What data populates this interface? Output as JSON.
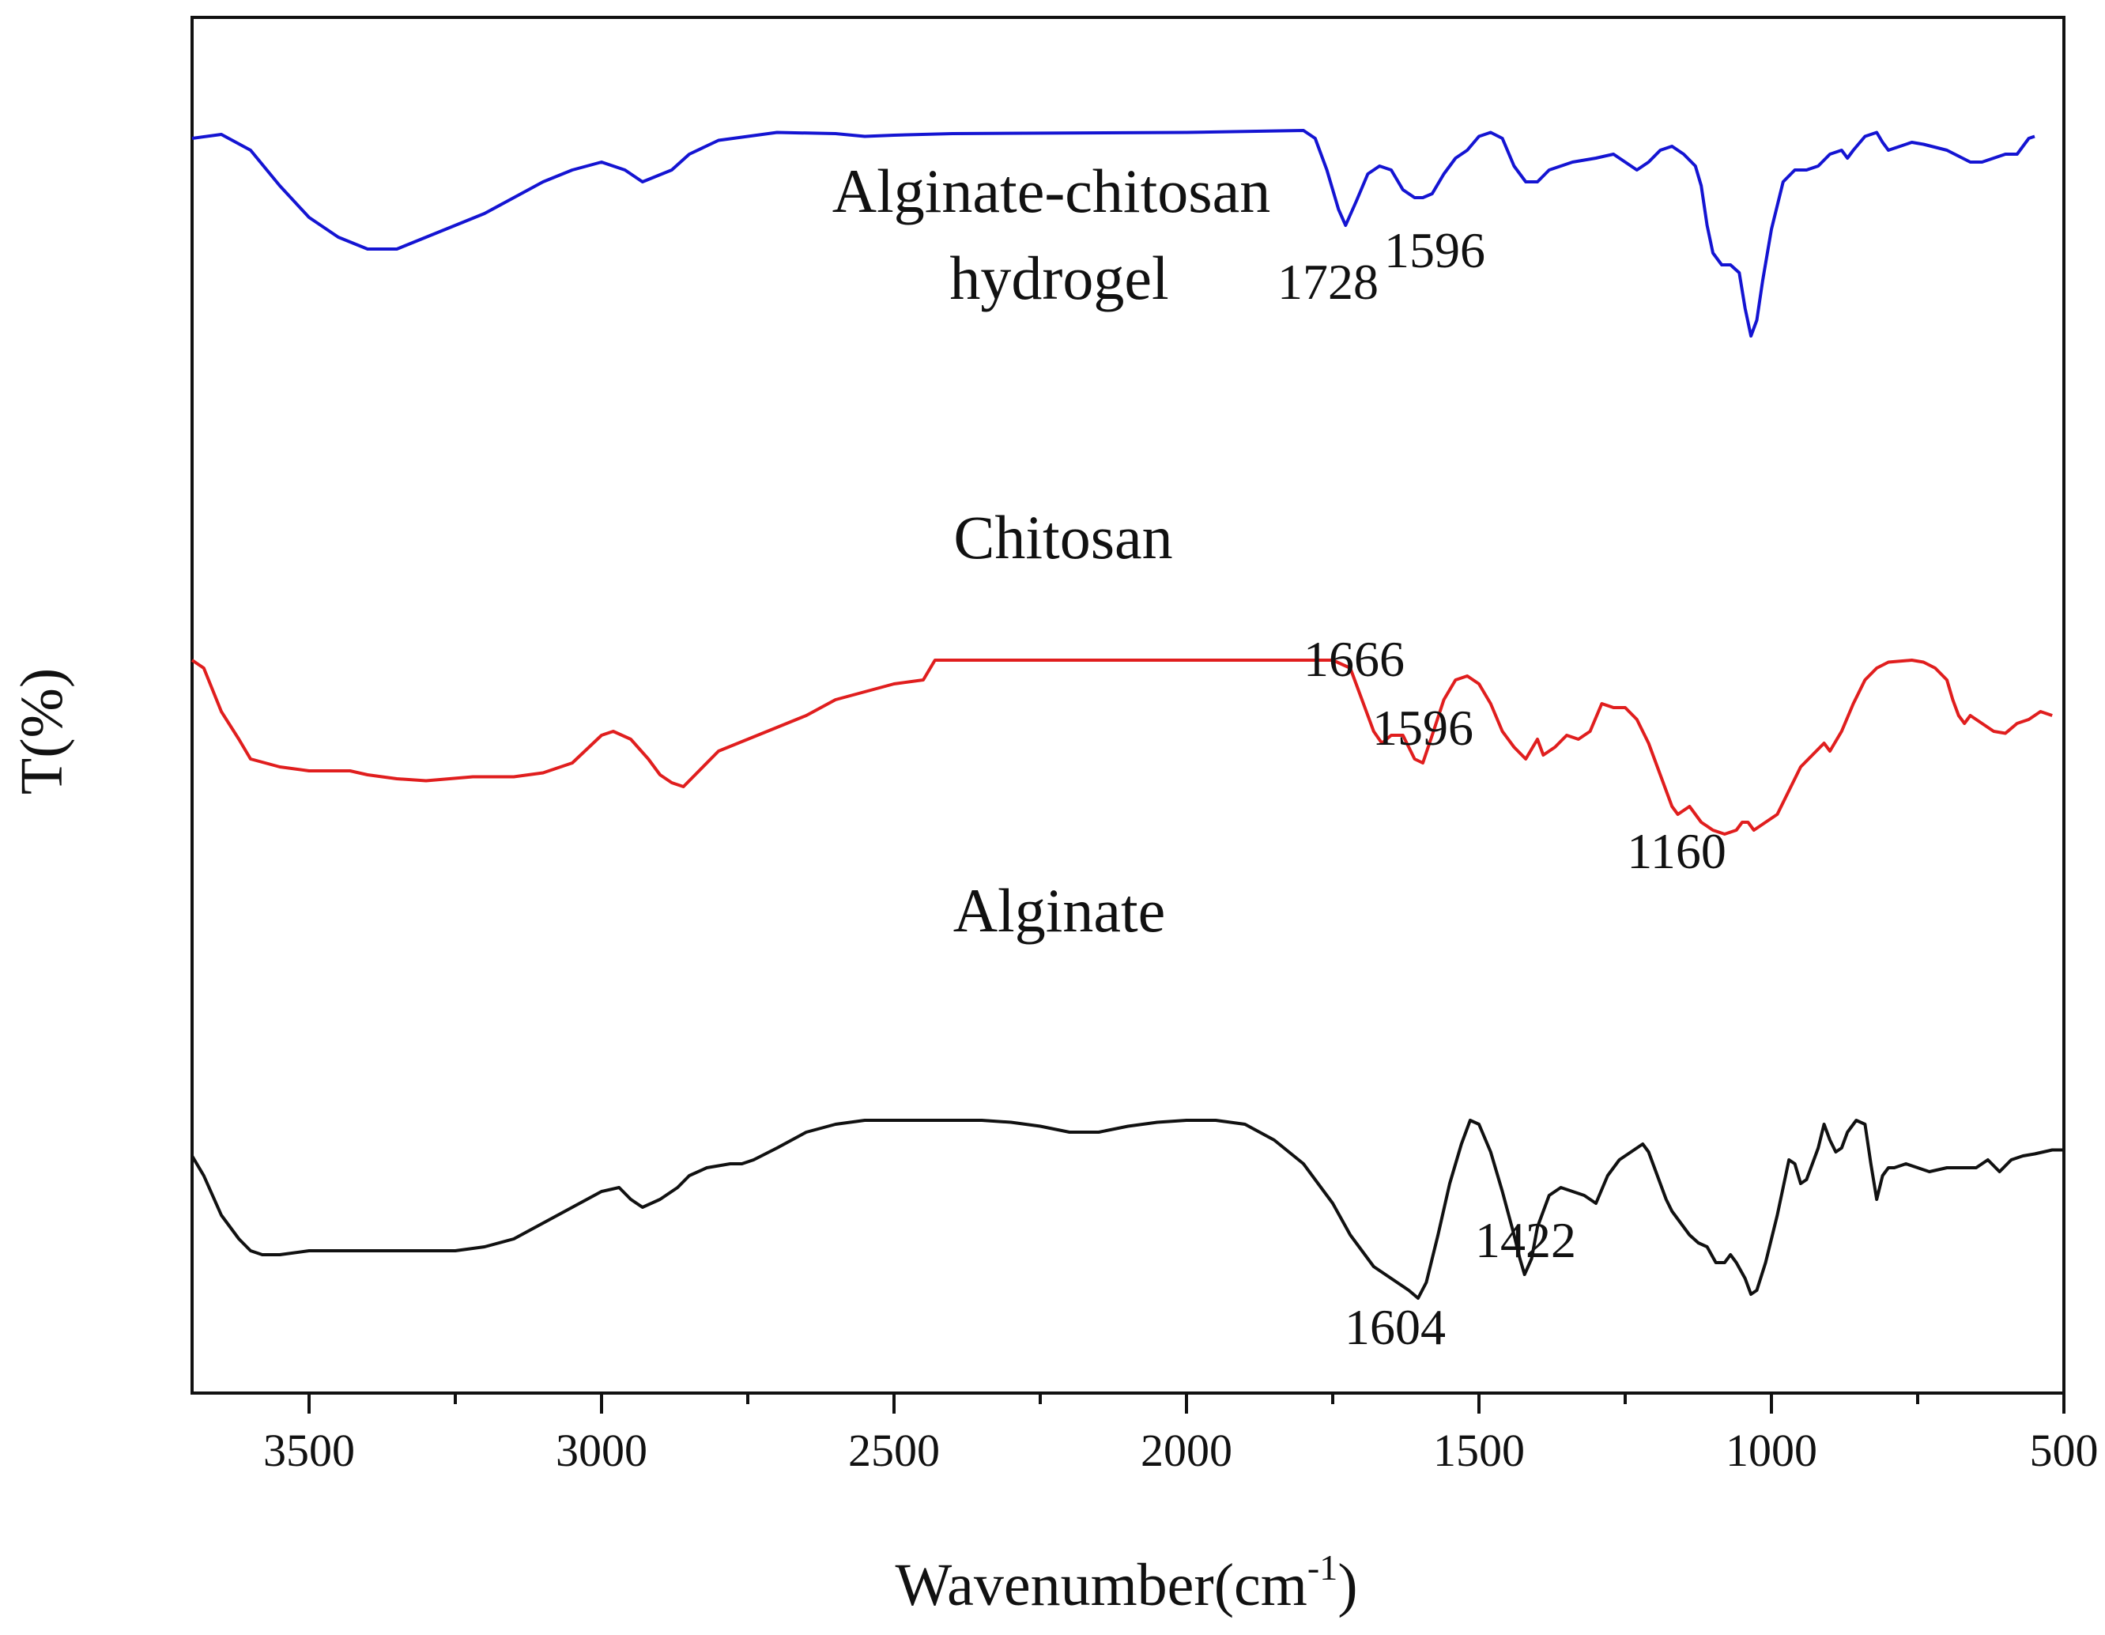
{
  "chart_data": {
    "type": "line",
    "title": "",
    "xlabel": "Wavenumber(cm",
    "xlabel_sup": "-1",
    "xlabel_close": ")",
    "ylabel": "T(%)",
    "xlim": [
      3700,
      500
    ],
    "x_reversed": true,
    "xticks": [
      "3500",
      "3000",
      "2500",
      "2000",
      "1500",
      "1000",
      "500"
    ],
    "xtick_values": [
      3500,
      3000,
      2500,
      2000,
      1500,
      1000,
      500
    ],
    "y_ticks_shown": false,
    "grid": false,
    "legend": "none",
    "series": [
      {
        "name": "Alginate-chitosan hydrogel",
        "label_lines": [
          "Alginate-chitosan",
          "hydrogel"
        ],
        "color": "#1414d2",
        "points": [
          [
            3700,
            2.0
          ],
          [
            3650,
            1.0
          ],
          [
            3600,
            5
          ],
          [
            3550,
            14
          ],
          [
            3500,
            22
          ],
          [
            3450,
            27
          ],
          [
            3400,
            30
          ],
          [
            3350,
            30
          ],
          [
            3300,
            27
          ],
          [
            3250,
            24
          ],
          [
            3200,
            21
          ],
          [
            3150,
            17
          ],
          [
            3100,
            13
          ],
          [
            3050,
            10
          ],
          [
            3000,
            8
          ],
          [
            2960,
            10
          ],
          [
            2930,
            13
          ],
          [
            2880,
            10
          ],
          [
            2850,
            6
          ],
          [
            2800,
            2.5
          ],
          [
            2700,
            0.5
          ],
          [
            2600,
            0.8
          ],
          [
            2550,
            1.5
          ],
          [
            2500,
            1.2
          ],
          [
            2400,
            0.8
          ],
          [
            2000,
            0.5
          ],
          [
            1800,
            0.0
          ],
          [
            1780,
            2
          ],
          [
            1760,
            10
          ],
          [
            1740,
            20
          ],
          [
            1728,
            24
          ],
          [
            1710,
            18
          ],
          [
            1690,
            11
          ],
          [
            1670,
            9
          ],
          [
            1650,
            10
          ],
          [
            1630,
            15
          ],
          [
            1610,
            17
          ],
          [
            1596,
            17
          ],
          [
            1580,
            16
          ],
          [
            1560,
            11
          ],
          [
            1540,
            7
          ],
          [
            1520,
            5
          ],
          [
            1500,
            1.5
          ],
          [
            1480,
            0.5
          ],
          [
            1460,
            2
          ],
          [
            1440,
            9
          ],
          [
            1420,
            13
          ],
          [
            1400,
            13
          ],
          [
            1380,
            10
          ],
          [
            1340,
            8
          ],
          [
            1300,
            7
          ],
          [
            1270,
            6
          ],
          [
            1250,
            8
          ],
          [
            1230,
            10
          ],
          [
            1210,
            8
          ],
          [
            1190,
            5
          ],
          [
            1170,
            4
          ],
          [
            1150,
            6
          ],
          [
            1130,
            9
          ],
          [
            1120,
            14
          ],
          [
            1110,
            24
          ],
          [
            1100,
            31
          ],
          [
            1085,
            34
          ],
          [
            1070,
            34
          ],
          [
            1055,
            36
          ],
          [
            1045,
            45
          ],
          [
            1035,
            52
          ],
          [
            1025,
            48
          ],
          [
            1015,
            38
          ],
          [
            1000,
            25
          ],
          [
            980,
            13
          ],
          [
            960,
            10
          ],
          [
            940,
            10
          ],
          [
            920,
            9
          ],
          [
            900,
            6
          ],
          [
            880,
            5
          ],
          [
            870,
            7
          ],
          [
            860,
            5
          ],
          [
            840,
            1.5
          ],
          [
            820,
            0.5
          ],
          [
            810,
            3
          ],
          [
            800,
            5
          ],
          [
            780,
            4
          ],
          [
            760,
            3
          ],
          [
            740,
            3.5
          ],
          [
            700,
            5
          ],
          [
            660,
            8
          ],
          [
            640,
            8
          ],
          [
            620,
            7
          ],
          [
            600,
            6
          ],
          [
            580,
            6
          ],
          [
            570,
            4
          ],
          [
            560,
            2
          ],
          [
            550,
            1.5
          ]
        ]
      },
      {
        "name": "Chitosan",
        "label_lines": [
          "Chitosan"
        ],
        "color": "#e01e1e",
        "points": [
          [
            3700,
            47
          ],
          [
            3680,
            49
          ],
          [
            3650,
            60
          ],
          [
            3620,
            67
          ],
          [
            3600,
            72
          ],
          [
            3550,
            74
          ],
          [
            3500,
            75
          ],
          [
            3430,
            75
          ],
          [
            3400,
            76
          ],
          [
            3350,
            77
          ],
          [
            3300,
            77.5
          ],
          [
            3260,
            77
          ],
          [
            3220,
            76.5
          ],
          [
            3150,
            76.5
          ],
          [
            3100,
            75.5
          ],
          [
            3050,
            73
          ],
          [
            3000,
            66
          ],
          [
            2980,
            65
          ],
          [
            2950,
            67
          ],
          [
            2920,
            72
          ],
          [
            2900,
            76
          ],
          [
            2880,
            78
          ],
          [
            2860,
            79
          ],
          [
            2840,
            76
          ],
          [
            2800,
            70
          ],
          [
            2750,
            67
          ],
          [
            2700,
            64
          ],
          [
            2650,
            61
          ],
          [
            2600,
            57
          ],
          [
            2550,
            55
          ],
          [
            2500,
            53
          ],
          [
            2450,
            52
          ],
          [
            2430,
            47
          ],
          [
            2200,
            47
          ],
          [
            2100,
            47
          ],
          [
            1750,
            47
          ],
          [
            1720,
            49
          ],
          [
            1700,
            57
          ],
          [
            1680,
            65
          ],
          [
            1666,
            68
          ],
          [
            1650,
            66
          ],
          [
            1630,
            66
          ],
          [
            1610,
            72
          ],
          [
            1596,
            73
          ],
          [
            1580,
            66
          ],
          [
            1560,
            57
          ],
          [
            1540,
            52
          ],
          [
            1520,
            51
          ],
          [
            1500,
            53
          ],
          [
            1480,
            58
          ],
          [
            1460,
            65
          ],
          [
            1440,
            69
          ],
          [
            1420,
            72
          ],
          [
            1400,
            67
          ],
          [
            1390,
            71
          ],
          [
            1370,
            69
          ],
          [
            1350,
            66
          ],
          [
            1330,
            67
          ],
          [
            1310,
            65
          ],
          [
            1290,
            58
          ],
          [
            1270,
            59
          ],
          [
            1250,
            59
          ],
          [
            1230,
            62
          ],
          [
            1210,
            68
          ],
          [
            1190,
            76
          ],
          [
            1170,
            84
          ],
          [
            1160,
            86
          ],
          [
            1140,
            84
          ],
          [
            1120,
            88
          ],
          [
            1100,
            90
          ],
          [
            1080,
            91
          ],
          [
            1060,
            90
          ],
          [
            1050,
            88
          ],
          [
            1040,
            88
          ],
          [
            1030,
            90
          ],
          [
            1010,
            88
          ],
          [
            990,
            86
          ],
          [
            970,
            80
          ],
          [
            950,
            74
          ],
          [
            930,
            71
          ],
          [
            910,
            68
          ],
          [
            900,
            70
          ],
          [
            880,
            65
          ],
          [
            860,
            58
          ],
          [
            840,
            52
          ],
          [
            820,
            49
          ],
          [
            800,
            47.5
          ],
          [
            760,
            47
          ],
          [
            740,
            47.5
          ],
          [
            720,
            49
          ],
          [
            700,
            52
          ],
          [
            690,
            57
          ],
          [
            680,
            61
          ],
          [
            670,
            63
          ],
          [
            660,
            61
          ],
          [
            640,
            63
          ],
          [
            620,
            65
          ],
          [
            600,
            65.5
          ],
          [
            580,
            63
          ],
          [
            560,
            62
          ],
          [
            540,
            60
          ],
          [
            520,
            61
          ]
        ]
      },
      {
        "name": "Alginate",
        "label_lines": [
          "Alginate"
        ],
        "color": "#111111",
        "points": [
          [
            3700,
            86
          ],
          [
            3680,
            91
          ],
          [
            3650,
            101
          ],
          [
            3620,
            107
          ],
          [
            3600,
            110
          ],
          [
            3580,
            111
          ],
          [
            3550,
            111
          ],
          [
            3500,
            110
          ],
          [
            3450,
            110
          ],
          [
            3400,
            110
          ],
          [
            3300,
            110
          ],
          [
            3250,
            110
          ],
          [
            3200,
            109
          ],
          [
            3150,
            107
          ],
          [
            3100,
            103
          ],
          [
            3050,
            99
          ],
          [
            3000,
            95
          ],
          [
            2970,
            94
          ],
          [
            2950,
            97
          ],
          [
            2930,
            99
          ],
          [
            2900,
            97
          ],
          [
            2870,
            94
          ],
          [
            2850,
            91
          ],
          [
            2820,
            89
          ],
          [
            2780,
            88
          ],
          [
            2760,
            88
          ],
          [
            2740,
            87
          ],
          [
            2700,
            84
          ],
          [
            2650,
            80
          ],
          [
            2600,
            78
          ],
          [
            2550,
            77
          ],
          [
            2500,
            77
          ],
          [
            2400,
            77
          ],
          [
            2350,
            77
          ],
          [
            2300,
            77.5
          ],
          [
            2250,
            78.5
          ],
          [
            2200,
            80
          ],
          [
            2150,
            80
          ],
          [
            2100,
            78.5
          ],
          [
            2050,
            77.5
          ],
          [
            2000,
            77
          ],
          [
            1950,
            77
          ],
          [
            1900,
            78
          ],
          [
            1850,
            82
          ],
          [
            1800,
            88
          ],
          [
            1750,
            98
          ],
          [
            1720,
            106
          ],
          [
            1700,
            110
          ],
          [
            1680,
            114
          ],
          [
            1660,
            116
          ],
          [
            1640,
            118
          ],
          [
            1620,
            120
          ],
          [
            1604,
            122
          ],
          [
            1590,
            118
          ],
          [
            1570,
            106
          ],
          [
            1550,
            93
          ],
          [
            1530,
            83
          ],
          [
            1515,
            77
          ],
          [
            1500,
            78
          ],
          [
            1480,
            85
          ],
          [
            1460,
            95
          ],
          [
            1440,
            106
          ],
          [
            1430,
            112
          ],
          [
            1422,
            116
          ],
          [
            1410,
            112
          ],
          [
            1400,
            104
          ],
          [
            1380,
            96
          ],
          [
            1360,
            94
          ],
          [
            1340,
            95
          ],
          [
            1320,
            96
          ],
          [
            1300,
            98
          ],
          [
            1280,
            91
          ],
          [
            1260,
            87
          ],
          [
            1240,
            85
          ],
          [
            1230,
            84
          ],
          [
            1220,
            83
          ],
          [
            1210,
            85
          ],
          [
            1200,
            89
          ],
          [
            1180,
            97
          ],
          [
            1170,
            100
          ],
          [
            1160,
            102
          ],
          [
            1140,
            106
          ],
          [
            1125,
            108
          ],
          [
            1110,
            109
          ],
          [
            1095,
            113
          ],
          [
            1080,
            113
          ],
          [
            1070,
            111
          ],
          [
            1060,
            113
          ],
          [
            1045,
            117
          ],
          [
            1035,
            121
          ],
          [
            1025,
            120
          ],
          [
            1010,
            113
          ],
          [
            990,
            101
          ],
          [
            970,
            87
          ],
          [
            960,
            88
          ],
          [
            950,
            93
          ],
          [
            940,
            92
          ],
          [
            920,
            84
          ],
          [
            910,
            78
          ],
          [
            900,
            82
          ],
          [
            890,
            85
          ],
          [
            880,
            84
          ],
          [
            870,
            80
          ],
          [
            855,
            77
          ],
          [
            840,
            78
          ],
          [
            830,
            88
          ],
          [
            820,
            97
          ],
          [
            810,
            91
          ],
          [
            800,
            89
          ],
          [
            790,
            89
          ],
          [
            770,
            88
          ],
          [
            750,
            89
          ],
          [
            730,
            90
          ],
          [
            700,
            89
          ],
          [
            650,
            89
          ],
          [
            630,
            87
          ],
          [
            610,
            90
          ],
          [
            590,
            87
          ],
          [
            570,
            86
          ],
          [
            550,
            85.5
          ],
          [
            520,
            84.5
          ],
          [
            500,
            84.5
          ]
        ]
      }
    ],
    "annotations": [
      "1728",
      "1596",
      "1666",
      "1596",
      "1160",
      "1422",
      "1604"
    ]
  }
}
